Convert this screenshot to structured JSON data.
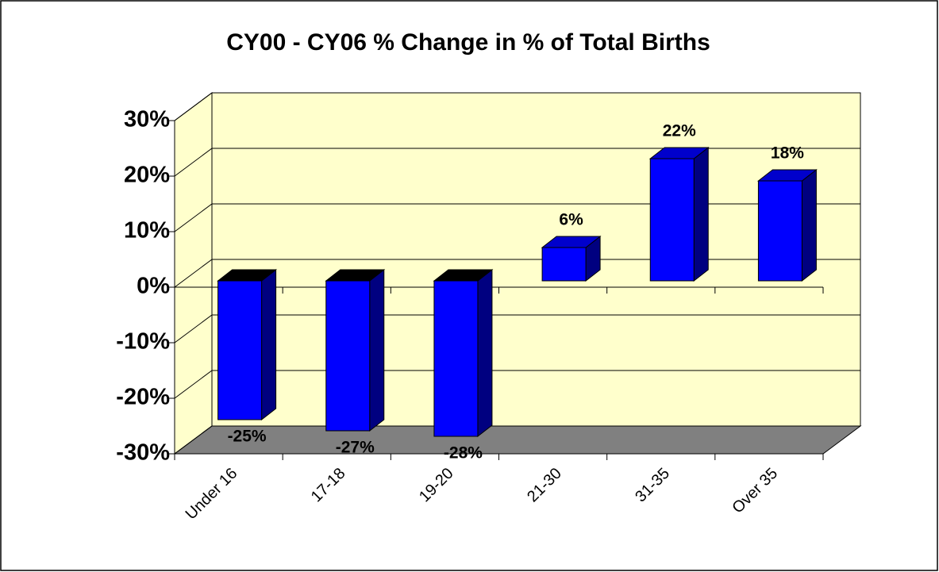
{
  "chart_data": {
    "type": "bar3d",
    "title": "CY00 - CY06 % Change in % of Total Births",
    "categories": [
      "Under 16",
      "17-18",
      "19-20",
      "21-30",
      "31-35",
      "Over 35"
    ],
    "values": [
      -25,
      -27,
      -28,
      6,
      22,
      18
    ],
    "value_labels": [
      "-25%",
      "-27%",
      "-28%",
      "6%",
      "22%",
      "18%"
    ],
    "color": "#0000ff",
    "ylim": [
      -30,
      30
    ],
    "yticks": [
      {
        "value": -30,
        "label": "-30%"
      },
      {
        "value": -20,
        "label": "-20%"
      },
      {
        "value": -10,
        "label": "-10%"
      },
      {
        "value": 0,
        "label": "0%"
      },
      {
        "value": 10,
        "label": "10%"
      },
      {
        "value": 20,
        "label": "20%"
      },
      {
        "value": 30,
        "label": "30%"
      }
    ],
    "grid": true
  }
}
